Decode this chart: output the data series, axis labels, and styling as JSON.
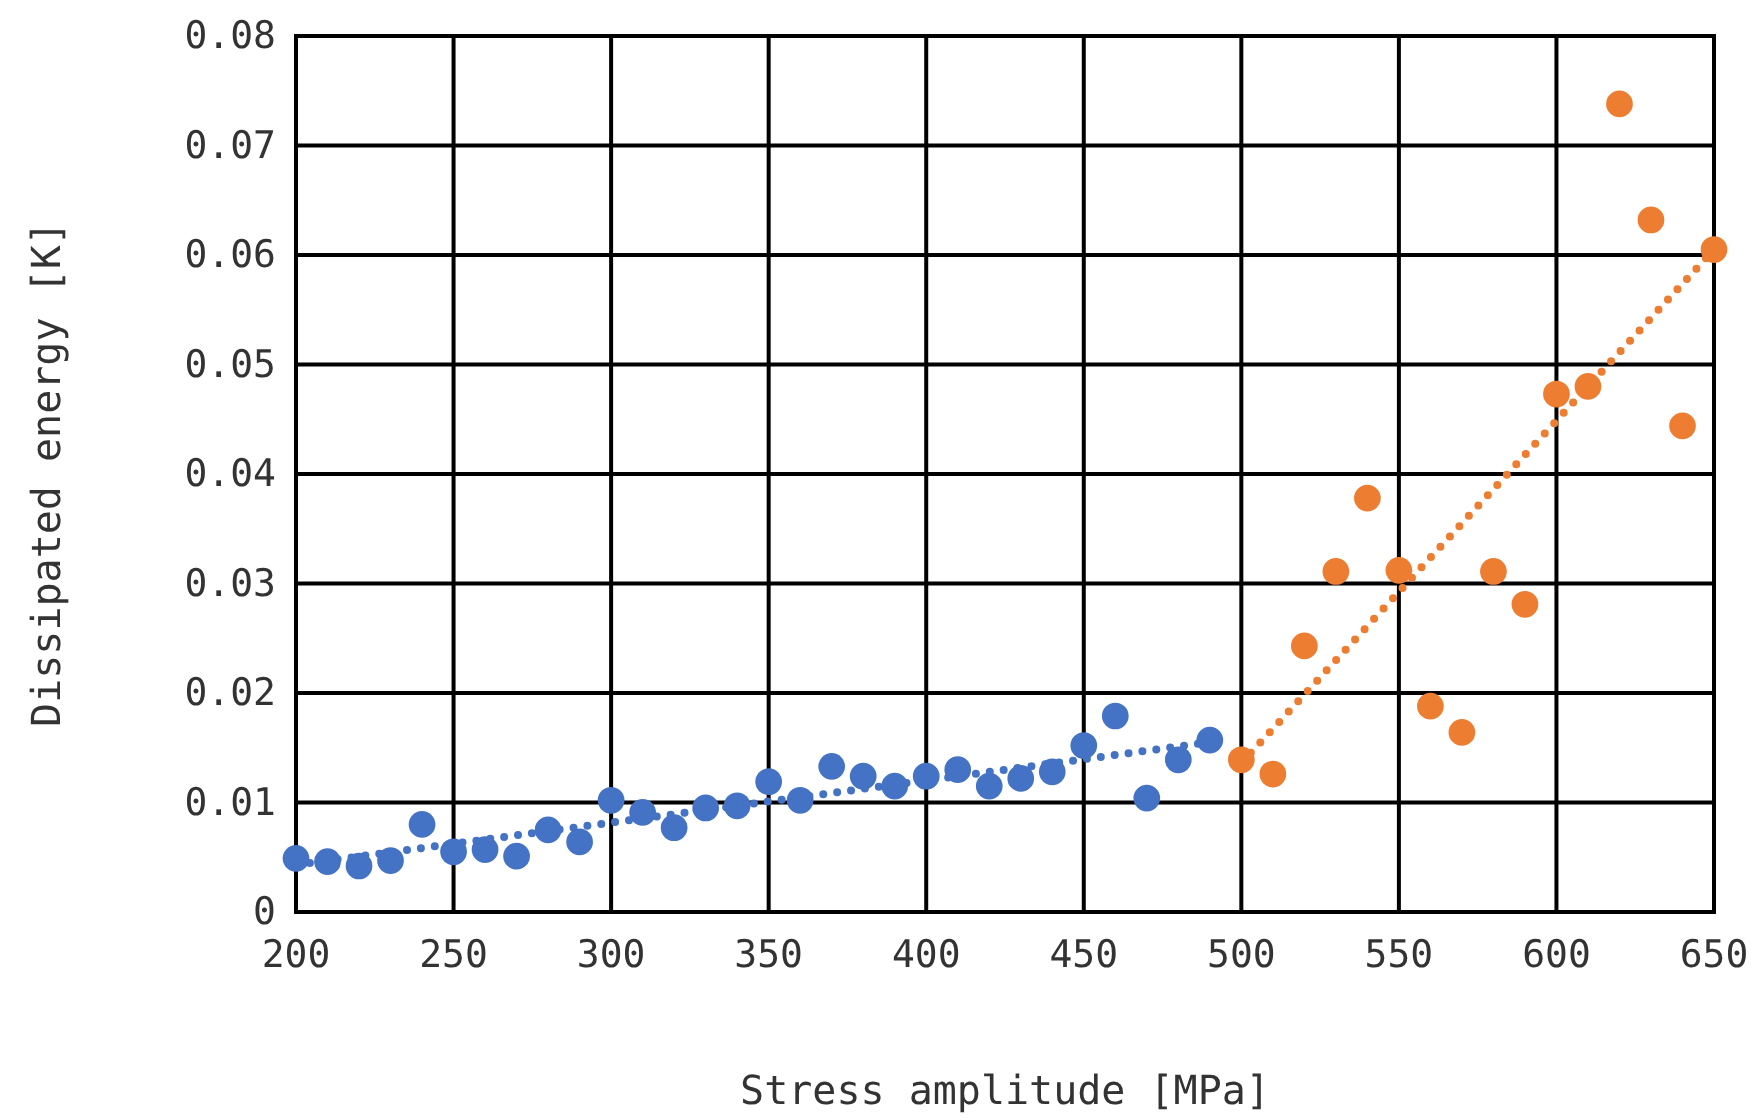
{
  "chart_data": {
    "type": "scatter",
    "xlabel": "Stress amplitude [MPa]",
    "ylabel": "Dissipated energy [K]",
    "xlim": [
      200,
      650
    ],
    "xticks": [
      200,
      250,
      300,
      350,
      400,
      450,
      500,
      550,
      600,
      650
    ],
    "ylim": [
      0,
      0.08
    ],
    "yticks": [
      {
        "value": 0,
        "label": "0"
      },
      {
        "value": 0.01,
        "label": "0.01"
      },
      {
        "value": 0.02,
        "label": "0.02"
      },
      {
        "value": 0.03,
        "label": "0.03"
      },
      {
        "value": 0.04,
        "label": "0.04"
      },
      {
        "value": 0.05,
        "label": "0.05"
      },
      {
        "value": 0.06,
        "label": "0.06"
      },
      {
        "value": 0.07,
        "label": "0.07"
      },
      {
        "value": 0.08,
        "label": "0.08"
      }
    ],
    "grid": true,
    "marker": "circle",
    "series": [
      {
        "color": "#4472c4",
        "x": [
          200,
          210,
          220,
          230,
          240,
          250,
          260,
          270,
          280,
          290,
          300,
          310,
          320,
          330,
          340,
          350,
          360,
          370,
          380,
          390,
          400,
          410,
          420,
          430,
          440,
          450,
          460,
          470,
          480,
          490
        ],
        "values": [
          0.0049,
          0.0046,
          0.0042,
          0.0047,
          0.008,
          0.0055,
          0.0057,
          0.0051,
          0.0075,
          0.0064,
          0.0102,
          0.0091,
          0.0077,
          0.0095,
          0.0097,
          0.0119,
          0.0102,
          0.0133,
          0.0124,
          0.0115,
          0.0124,
          0.013,
          0.0115,
          0.0122,
          0.0128,
          0.0152,
          0.0179,
          0.0104,
          0.0139,
          0.0157
        ]
      },
      {
        "color": "#ed7d31",
        "x": [
          500,
          510,
          520,
          530,
          540,
          550,
          560,
          570,
          580,
          590,
          600,
          610,
          620,
          630,
          640,
          650
        ],
        "values": [
          0.0139,
          0.0126,
          0.0243,
          0.0311,
          0.0378,
          0.0312,
          0.0188,
          0.0164,
          0.0311,
          0.0281,
          0.0473,
          0.048,
          0.0738,
          0.0632,
          0.0444,
          0.0605
        ]
      },
      {
        "type": "line",
        "color": "#4472c4",
        "line_style": "dotted",
        "marker": "none",
        "x": [
          200,
          490
        ],
        "values": [
          0.0043,
          0.0155
        ]
      },
      {
        "type": "line",
        "color": "#ed7d31",
        "line_style": "dotted",
        "marker": "none",
        "x": [
          500,
          650
        ],
        "values": [
          0.0136,
          0.0605
        ]
      }
    ]
  }
}
